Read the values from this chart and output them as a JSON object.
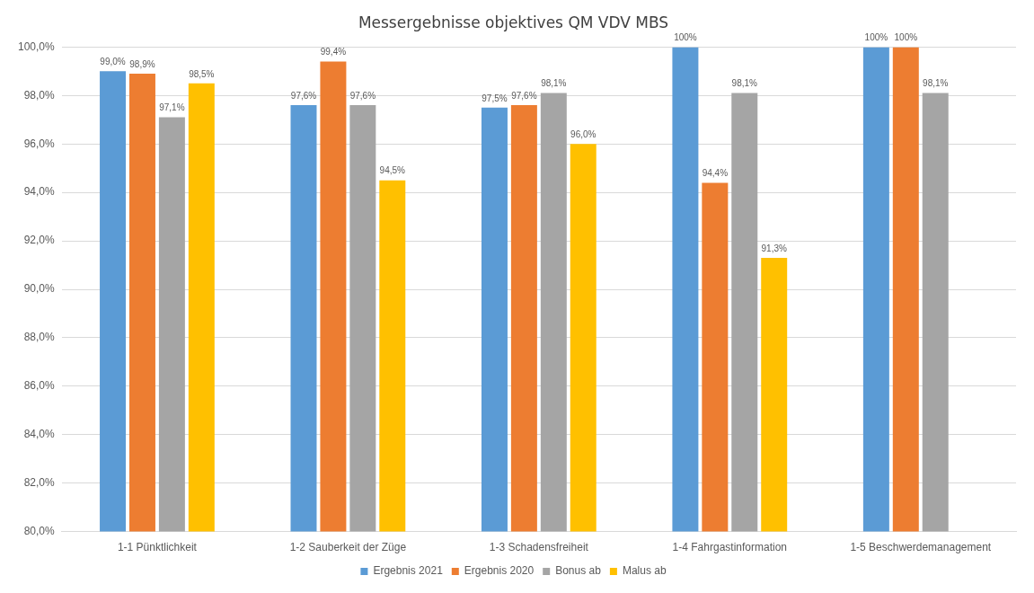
{
  "chart_data": {
    "type": "bar",
    "title": "Messergebnisse objektives QM VDV MBS",
    "categories": [
      "1-1 Pünktlichkeit",
      "1-2 Sauberkeit der Züge",
      "1-3 Schadensfreiheit",
      "1-4 Fahrgastinformation",
      "1-5 Beschwerdemanagement"
    ],
    "series": [
      {
        "name": "Ergebnis 2021",
        "color": "#5b9bd5",
        "values": [
          99.0,
          97.6,
          97.5,
          100,
          100
        ],
        "value_labels": [
          "99,0%",
          "97,6%",
          "97,5%",
          "100%",
          "100%"
        ]
      },
      {
        "name": "Ergebnis 2020",
        "color": "#ed7d31",
        "values": [
          98.9,
          99.4,
          97.6,
          94.4,
          100
        ],
        "value_labels": [
          "98,9%",
          "99,4%",
          "97,6%",
          "94,4%",
          "100%"
        ]
      },
      {
        "name": "Bonus ab",
        "color": "#a5a5a5",
        "values": [
          97.1,
          97.6,
          98.1,
          98.1,
          98.1
        ],
        "value_labels": [
          "97,1%",
          "97,6%",
          "98,1%",
          "98,1%",
          "98,1%"
        ]
      },
      {
        "name": "Malus ab",
        "color": "#ffc000",
        "values": [
          98.5,
          94.5,
          96.0,
          91.3,
          null
        ],
        "value_labels": [
          "98,5%",
          "94,5%",
          "96,0%",
          "91,3%",
          null
        ]
      }
    ],
    "ylim": [
      80,
      100
    ],
    "yticks": [
      {
        "value": 80,
        "label": "80,0%"
      },
      {
        "value": 82,
        "label": "82,0%"
      },
      {
        "value": 84,
        "label": "84,0%"
      },
      {
        "value": 86,
        "label": "86,0%"
      },
      {
        "value": 88,
        "label": "88,0%"
      },
      {
        "value": 90,
        "label": "90,0%"
      },
      {
        "value": 92,
        "label": "92,0%"
      },
      {
        "value": 94,
        "label": "94,0%"
      },
      {
        "value": 96,
        "label": "96,0%"
      },
      {
        "value": 98,
        "label": "98,0%"
      },
      {
        "value": 100,
        "label": "100,0%"
      }
    ],
    "grid": "y",
    "legend": "bottom"
  }
}
